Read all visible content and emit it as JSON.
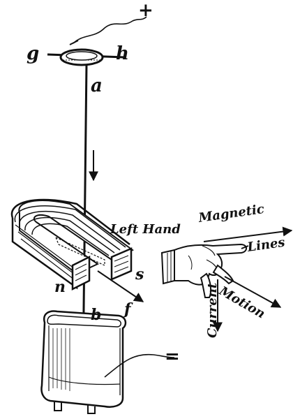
{
  "diagram": {
    "labels": {
      "plus": "+",
      "minus": "=",
      "g": "g",
      "h": "h",
      "a": "a",
      "b": "b",
      "n": "n",
      "s": "s",
      "f": "f",
      "left_hand": "Left Hand",
      "magnetic": "Magnetic",
      "lines": "Lines",
      "motion": "Motion",
      "current": "Current"
    },
    "colors": {
      "ink": "#111111",
      "paper": "#ffffff"
    }
  }
}
